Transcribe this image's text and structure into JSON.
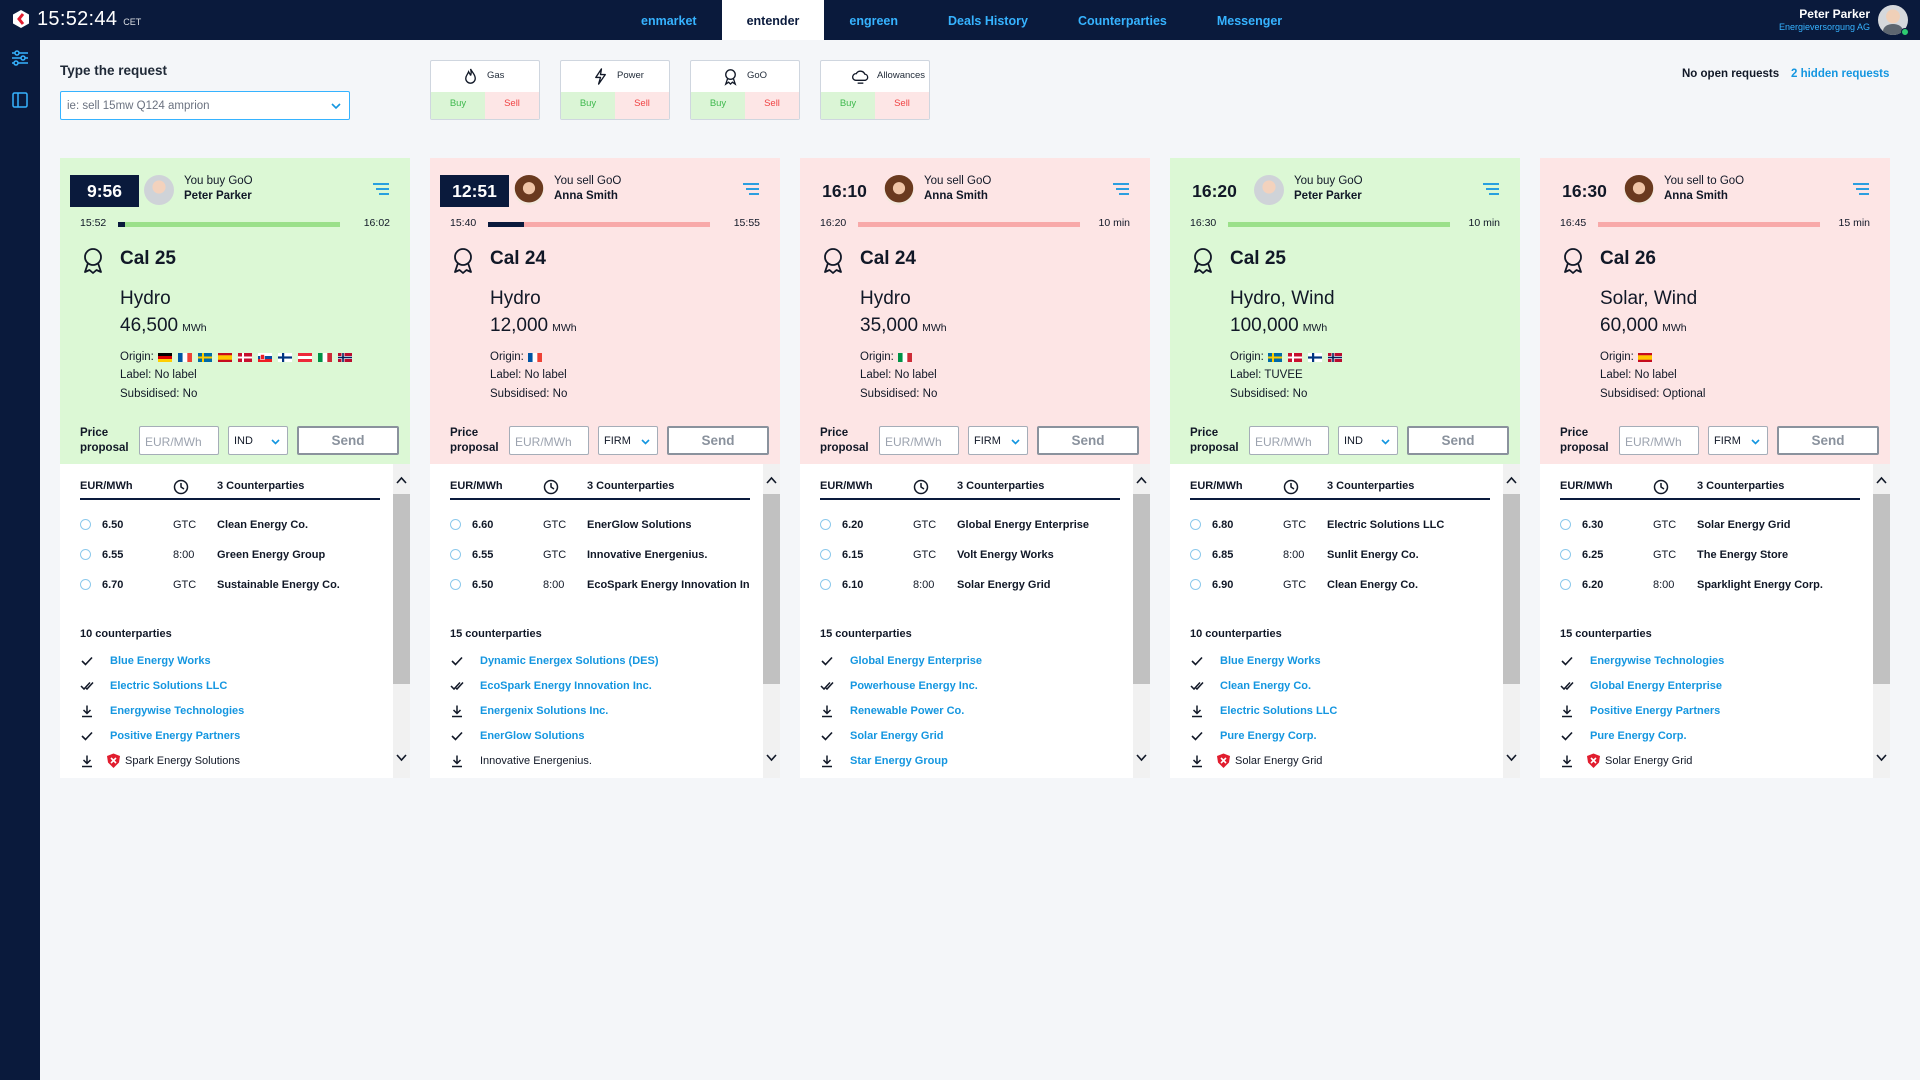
{
  "header": {
    "time": "15:52:44",
    "timezone": "CET",
    "nav": [
      {
        "label": "enmarket",
        "active": false
      },
      {
        "label": "entender",
        "active": true
      },
      {
        "label": "engreen",
        "active": false
      },
      {
        "label": "Deals History",
        "active": false
      },
      {
        "label": "Counterparties",
        "active": false
      },
      {
        "label": "Messenger",
        "active": false
      }
    ],
    "user_name": "Peter Parker",
    "user_company": "Energieversorgung AG"
  },
  "request": {
    "label": "Type the request",
    "placeholder": "ie: sell 15mw Q124 amprion"
  },
  "products": [
    {
      "name": "Gas",
      "icon": "flame-icon",
      "buy": "Buy",
      "sell": "Sell"
    },
    {
      "name": "Power",
      "icon": "lightning-icon",
      "buy": "Buy",
      "sell": "Sell"
    },
    {
      "name": "GoO",
      "icon": "ribbon-icon",
      "buy": "Buy",
      "sell": "Sell"
    },
    {
      "name": "Allowances",
      "icon": "cloud-icon",
      "buy": "Buy",
      "sell": "Sell"
    }
  ],
  "status": {
    "open": "No open requests",
    "hidden": "2 hidden requests"
  },
  "colors": {
    "navy": "#0a1a3c",
    "accent": "#1496e0",
    "buy_bg": "#dcf8d5",
    "sell_bg": "#fde5e5",
    "buy_bar": "#9be08a",
    "sell_bar": "#f8a9a9"
  },
  "cards": [
    {
      "side": "buy",
      "time": "9:56",
      "time_boxed": true,
      "avatar": "male",
      "action": "You buy GoO",
      "person": "Peter Parker",
      "start": "15:52",
      "end": "16:02",
      "progress": 0.03,
      "product": "Cal 25",
      "tech": "Hydro",
      "volume": "46,500",
      "unit": "MWh",
      "origin_label": "Origin:",
      "origins": [
        "DE",
        "FR",
        "SE",
        "ES",
        "DK",
        "SK",
        "FI",
        "AT",
        "IT",
        "NO"
      ],
      "label": "Label: No label",
      "subsidised": "Subsidised: No",
      "price_label": "Price proposal",
      "price_placeholder": "EUR/MWh",
      "mode": "IND",
      "send": "Send",
      "offers_header": {
        "price": "EUR/MWh",
        "cp": "3 Counterparties"
      },
      "offers": [
        {
          "price": "6.50",
          "tif": "GTC",
          "cp": "Clean Energy Co."
        },
        {
          "price": "6.55",
          "tif": "8:00",
          "cp": "Green Energy Group"
        },
        {
          "price": "6.70",
          "tif": "GTC",
          "cp": "Sustainable Energy Co."
        }
      ],
      "cp_count": "10 counterparties",
      "cps": [
        {
          "name": "Blue Energy Works",
          "icon": "check"
        },
        {
          "name": "Electric Solutions LLC",
          "icon": "double-check"
        },
        {
          "name": "Energywise Technologies",
          "icon": "download"
        },
        {
          "name": "Positive Energy Partners",
          "icon": "check"
        },
        {
          "name": "Spark Energy Solutions",
          "icon": "download",
          "blocked": true
        }
      ]
    },
    {
      "side": "sell",
      "time": "12:51",
      "time_boxed": true,
      "avatar": "female",
      "action": "You sell GoO",
      "person": "Anna Smith",
      "start": "15:40",
      "end": "15:55",
      "progress": 0.16,
      "product": "Cal 24",
      "tech": "Hydro",
      "volume": "12,000",
      "unit": "MWh",
      "origin_label": "Origin:",
      "origins": [
        "FR"
      ],
      "label": "Label: No label",
      "subsidised": "Subsidised: No",
      "price_label": "Price proposal",
      "price_placeholder": "EUR/MWh",
      "mode": "FIRM",
      "send": "Send",
      "offers_header": {
        "price": "EUR/MWh",
        "cp": "3 Counterparties"
      },
      "offers": [
        {
          "price": "6.60",
          "tif": "GTC",
          "cp": "EnerGlow Solutions"
        },
        {
          "price": "6.55",
          "tif": "GTC",
          "cp": "Innovative Energenius."
        },
        {
          "price": "6.50",
          "tif": "8:00",
          "cp": "EcoSpark Energy Innovation In"
        }
      ],
      "cp_count": "15 counterparties",
      "cps": [
        {
          "name": "Dynamic Energex Solutions (DES)",
          "icon": "check"
        },
        {
          "name": "EcoSpark Energy Innovation Inc.",
          "icon": "double-check"
        },
        {
          "name": "Energenix Solutions Inc.",
          "icon": "download"
        },
        {
          "name": "EnerGlow Solutions",
          "icon": "check"
        },
        {
          "name": "Innovative Energenius.",
          "icon": "download",
          "plain": true
        }
      ]
    },
    {
      "side": "sell",
      "time": "16:10",
      "time_boxed": false,
      "avatar": "female",
      "action": "You sell GoO",
      "person": "Anna Smith",
      "start": "16:20",
      "end": "10 min",
      "progress": 0,
      "product": "Cal 24",
      "tech": "Hydro",
      "volume": "35,000",
      "unit": "MWh",
      "origin_label": "Origin:",
      "origins": [
        "IT"
      ],
      "label": "Label:  No label",
      "subsidised": "Subsidised: No",
      "price_label": "Price proposal",
      "price_placeholder": "EUR/MWh",
      "mode": "FIRM",
      "send": "Send",
      "offers_header": {
        "price": "EUR/MWh",
        "cp": "3 Counterparties"
      },
      "offers": [
        {
          "price": "6.20",
          "tif": "GTC",
          "cp": "Global Energy Enterprise"
        },
        {
          "price": "6.15",
          "tif": "GTC",
          "cp": "Volt Energy Works"
        },
        {
          "price": "6.10",
          "tif": "8:00",
          "cp": "Solar Energy Grid"
        }
      ],
      "cp_count": "15 counterparties",
      "cps": [
        {
          "name": "Global Energy Enterprise",
          "icon": "check"
        },
        {
          "name": "Powerhouse Energy Inc.",
          "icon": "double-check"
        },
        {
          "name": "Renewable Power Co.",
          "icon": "download"
        },
        {
          "name": "Solar Energy Grid",
          "icon": "check"
        },
        {
          "name": "Star Energy Group",
          "icon": "download"
        }
      ]
    },
    {
      "side": "buy",
      "time": "16:20",
      "time_boxed": false,
      "avatar": "male",
      "action": "You buy GoO",
      "person": "Peter Parker",
      "start": "16:30",
      "end": "10 min",
      "progress": 0,
      "product": "Cal 25",
      "tech": "Hydro, Wind",
      "volume": "100,000",
      "unit": "MWh",
      "origin_label": "Origin:",
      "origins": [
        "SE",
        "DK",
        "FI",
        "NO"
      ],
      "label": "Label: TUVEE",
      "subsidised": "Subsidised: No",
      "price_label": "Price proposal",
      "price_placeholder": "EUR/MWh",
      "mode": "IND",
      "send": "Send",
      "offers_header": {
        "price": "EUR/MWh",
        "cp": "3 Counterparties"
      },
      "offers": [
        {
          "price": "6.80",
          "tif": "GTC",
          "cp": "Electric Solutions LLC"
        },
        {
          "price": "6.85",
          "tif": "8:00",
          "cp": "Sunlit Energy Co."
        },
        {
          "price": "6.90",
          "tif": "GTC",
          "cp": "Clean Energy Co."
        }
      ],
      "cp_count": "10 counterparties",
      "cps": [
        {
          "name": "Blue Energy Works",
          "icon": "check"
        },
        {
          "name": "Clean Energy Co.",
          "icon": "double-check"
        },
        {
          "name": "Electric Solutions LLC",
          "icon": "download"
        },
        {
          "name": "Pure Energy Corp.",
          "icon": "check"
        },
        {
          "name": "Solar Energy Grid",
          "icon": "download",
          "blocked": true
        }
      ]
    },
    {
      "side": "sell",
      "time": "16:30",
      "time_boxed": false,
      "avatar": "female",
      "action": "You sell to GoO",
      "person": "Anna Smith",
      "start": "16:45",
      "end": "15 min",
      "progress": 0,
      "product": "Cal 26",
      "tech": "Solar, Wind",
      "volume": "60,000",
      "unit": "MWh",
      "origin_label": "Origin:",
      "origins": [
        "ES"
      ],
      "label": "Label: No label",
      "subsidised": "Subsidised: Optional",
      "price_label": "Price proposal",
      "price_placeholder": "EUR/MWh",
      "mode": "FIRM",
      "send": "Send",
      "offers_header": {
        "price": "EUR/MWh",
        "cp": "3 Counterparties"
      },
      "offers": [
        {
          "price": "6.30",
          "tif": "GTC",
          "cp": "Solar Energy Grid"
        },
        {
          "price": "6.25",
          "tif": "GTC",
          "cp": "The Energy Store"
        },
        {
          "price": "6.20",
          "tif": "8:00",
          "cp": "Sparklight Energy Corp."
        }
      ],
      "cp_count": "15 counterparties",
      "cps": [
        {
          "name": "Energywise Technologies",
          "icon": "check"
        },
        {
          "name": "Global Energy Enterprise",
          "icon": "double-check"
        },
        {
          "name": "Positive Energy Partners",
          "icon": "download"
        },
        {
          "name": "Pure Energy Corp.",
          "icon": "check"
        },
        {
          "name": "Solar Energy Grid",
          "icon": "download",
          "blocked": true
        }
      ]
    }
  ]
}
